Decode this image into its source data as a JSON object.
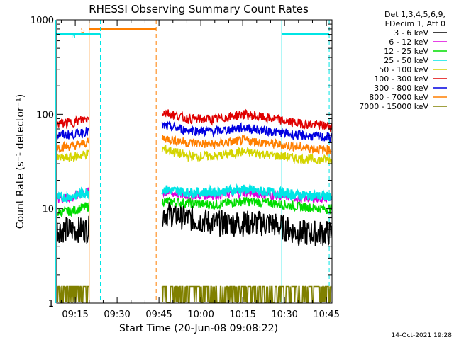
{
  "chart_data": {
    "type": "line",
    "title": "RHESSI Observing Summary Count Rates",
    "xlabel": "Start Time (20-Jun-08 09:08:22)",
    "ylabel": "Count Rate (s⁻¹ detector⁻¹)",
    "y_scale": "log",
    "ylim": [
      1,
      1000
    ],
    "xlim": [
      "09:08:22",
      "10:47:00"
    ],
    "x_tick_labels": [
      "09:15",
      "09:30",
      "09:45",
      "10:00",
      "10:15",
      "10:30",
      "10:45"
    ],
    "y_tick_labels": [
      "1",
      "10",
      "100",
      "1000"
    ],
    "legend_header": [
      "Det 1,3,4,5,6,9,",
      "FDecim 1, Att 0"
    ],
    "legend_placement": "right",
    "series": [
      {
        "name": "3 - 6 keV",
        "color": "#000000",
        "x": [
          "09:08",
          "09:14",
          "09:19",
          "09:47",
          "09:55",
          "10:05",
          "10:15",
          "10:25",
          "10:35",
          "10:45"
        ],
        "y": [
          6,
          6,
          6,
          9,
          8,
          7,
          7,
          7,
          5.5,
          5.5
        ]
      },
      {
        "name": "6 - 12 keV",
        "color": "#dd00dd",
        "x": [
          "09:08",
          "09:14",
          "09:19",
          "09:47",
          "09:55",
          "10:05",
          "10:15",
          "10:25",
          "10:35",
          "10:45"
        ],
        "y": [
          13,
          13,
          15,
          15,
          14,
          14,
          15,
          14,
          13,
          13
        ]
      },
      {
        "name": "12 - 25 keV",
        "color": "#00dd00",
        "x": [
          "09:08",
          "09:14",
          "09:19",
          "09:47",
          "09:55",
          "10:05",
          "10:15",
          "10:25",
          "10:35",
          "10:45"
        ],
        "y": [
          9,
          9.5,
          10.5,
          12,
          11.5,
          11,
          12,
          11.5,
          10.5,
          10
        ]
      },
      {
        "name": "25 - 50 keV",
        "color": "#00e5e5",
        "x": [
          "09:08",
          "09:14",
          "09:19",
          "09:47",
          "09:55",
          "10:05",
          "10:15",
          "10:25",
          "10:35",
          "10:45"
        ],
        "y": [
          13,
          13.5,
          15,
          16,
          15,
          15,
          16,
          15,
          14,
          13.5
        ]
      },
      {
        "name": "50 - 100 keV",
        "color": "#d4d400",
        "x": [
          "09:08",
          "09:14",
          "09:19",
          "09:47",
          "09:55",
          "10:05",
          "10:15",
          "10:25",
          "10:35",
          "10:45"
        ],
        "y": [
          34,
          35,
          38,
          43,
          36,
          36,
          40,
          37,
          34,
          33
        ]
      },
      {
        "name": "100 - 300 keV",
        "color": "#e00000",
        "x": [
          "09:08",
          "09:14",
          "09:19",
          "09:47",
          "09:55",
          "10:05",
          "10:15",
          "10:25",
          "10:35",
          "10:45"
        ],
        "y": [
          80,
          82,
          90,
          105,
          90,
          88,
          100,
          90,
          80,
          75
        ]
      },
      {
        "name": "300 - 800 keV",
        "color": "#0000e0",
        "x": [
          "09:08",
          "09:14",
          "09:19",
          "09:47",
          "09:55",
          "10:05",
          "10:15",
          "10:25",
          "10:35",
          "10:45"
        ],
        "y": [
          60,
          61,
          66,
          75,
          68,
          66,
          72,
          66,
          60,
          57
        ]
      },
      {
        "name": "800 - 7000 keV",
        "color": "#ff7f00",
        "x": [
          "09:08",
          "09:14",
          "09:19",
          "09:47",
          "09:55",
          "10:05",
          "10:15",
          "10:25",
          "10:35",
          "10:45"
        ],
        "y": [
          45,
          46,
          50,
          56,
          50,
          48,
          53,
          49,
          45,
          42
        ]
      },
      {
        "name": "7000 - 15000 keV",
        "color": "#808000",
        "x": [
          "09:08",
          "09:14",
          "09:19",
          "09:47",
          "09:55",
          "10:05",
          "10:15",
          "10:25",
          "10:35",
          "10:45"
        ],
        "y": [
          1.5,
          1.5,
          1.5,
          1.5,
          1.5,
          1.5,
          2,
          1.5,
          1.5,
          1.5
        ]
      }
    ],
    "annotations": [
      {
        "label": "S",
        "color": "#ff7f00",
        "x_start": "09:20",
        "x_end": "09:44"
      },
      {
        "label": "N",
        "color": "#00e5e5",
        "x_start": "09:08",
        "x_end": "09:24"
      },
      {
        "label": "",
        "color": "#00e5e5",
        "x_start": "10:29",
        "x_end": "10:46"
      }
    ],
    "grid": false
  },
  "footer": {
    "timestamp": "14-Oct-2021 19:28"
  }
}
